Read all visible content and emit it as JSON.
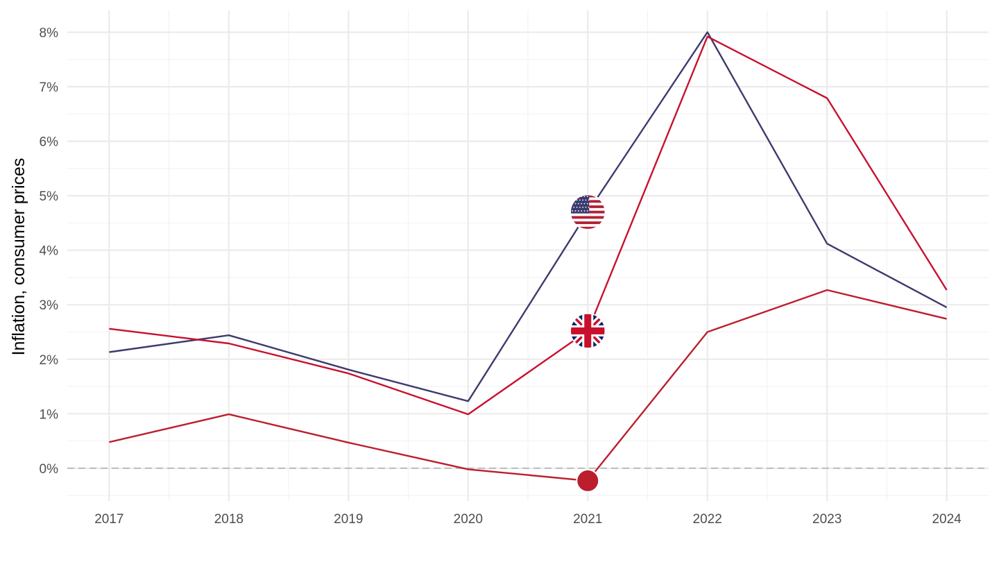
{
  "chart_data": {
    "type": "line",
    "title": "",
    "xlabel": "",
    "ylabel": "Inflation, consumer prices",
    "x": [
      2017,
      2018,
      2019,
      2020,
      2021,
      2022,
      2023,
      2024
    ],
    "x_tick_labels": [
      "2017",
      "2018",
      "2019",
      "2020",
      "2021",
      "2022",
      "2023",
      "2024"
    ],
    "yticks": [
      0,
      1,
      2,
      3,
      4,
      5,
      6,
      7,
      8
    ],
    "y_tick_labels": [
      "0%",
      "1%",
      "2%",
      "3%",
      "4%",
      "5%",
      "6%",
      "7%",
      "8%"
    ],
    "ylim": [
      -0.6,
      8.4
    ],
    "xlim": [
      2016.65,
      2024.35
    ],
    "grid": true,
    "legend": "none",
    "reference_line": {
      "y": 0,
      "style": "dashed",
      "color": "#bdbdbd"
    },
    "series": [
      {
        "values": [
          2.13,
          2.44,
          1.81,
          1.23,
          4.7,
          8.0,
          4.12,
          2.95
        ],
        "color": "#3c3b6e",
        "marker_x": 2021,
        "marker_icon": "us-flag-icon"
      },
      {
        "values": [
          2.56,
          2.29,
          1.74,
          0.99,
          2.52,
          7.92,
          6.79,
          3.27
        ],
        "color": "#c8102e",
        "marker_x": 2021,
        "marker_icon": "uk-flag-icon"
      },
      {
        "values": [
          0.48,
          0.99,
          0.47,
          -0.02,
          -0.23,
          2.5,
          3.27,
          2.74
        ],
        "color": "#bc1e2d",
        "marker_x": 2021,
        "marker_icon": "red-circle-icon"
      }
    ]
  }
}
